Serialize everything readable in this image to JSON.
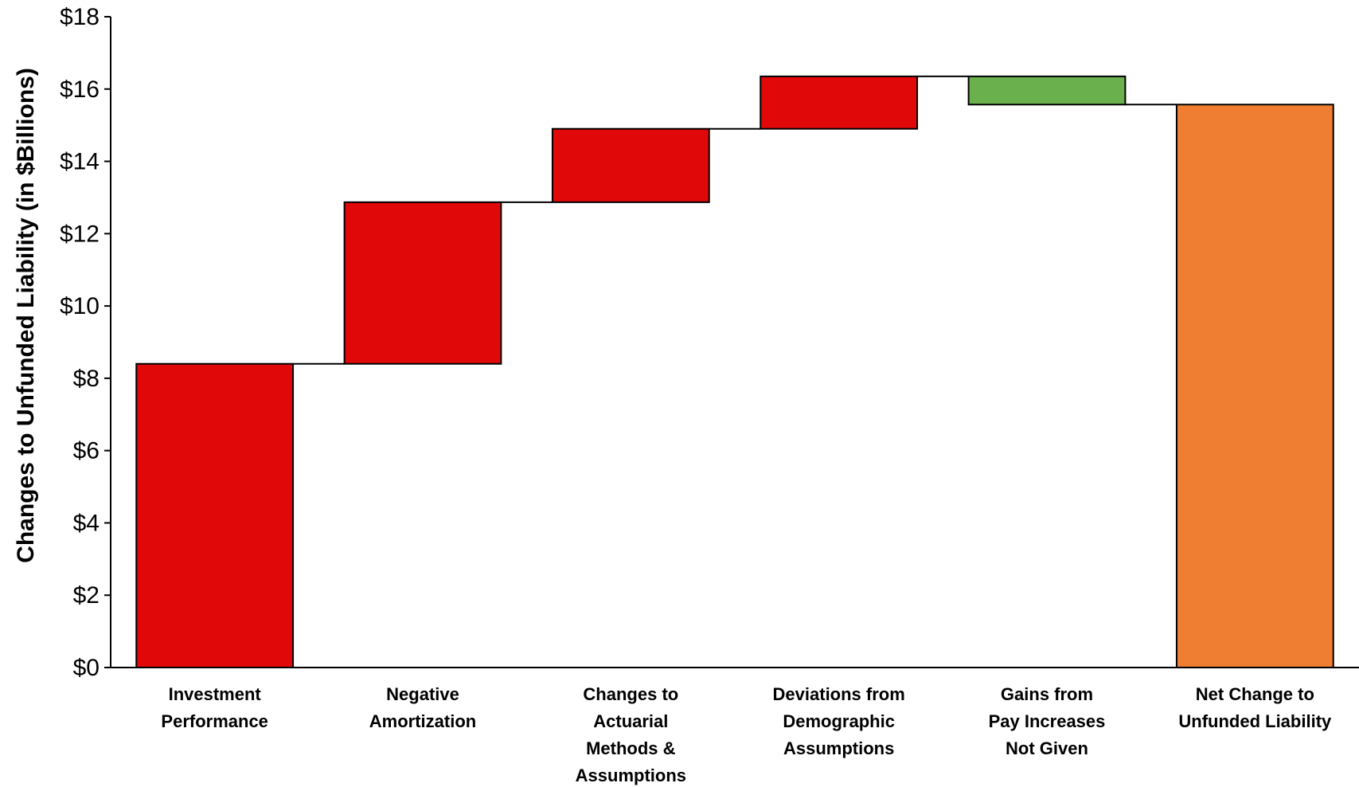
{
  "chart_data": {
    "type": "bar",
    "subtype": "waterfall",
    "ylabel": "Changes to Unfunded Liability (in $Billions)",
    "xlabel": "",
    "ylim": [
      0,
      18
    ],
    "yticks": [
      0,
      2,
      4,
      6,
      8,
      10,
      12,
      14,
      16,
      18
    ],
    "ytick_labels": [
      "$0",
      "$2",
      "$4",
      "$6",
      "$8",
      "$10",
      "$12",
      "$14",
      "$16",
      "$18"
    ],
    "grid": false,
    "legend": "none",
    "categories": [
      [
        "Investment",
        "Performance"
      ],
      [
        "Negative",
        "Amortization"
      ],
      [
        "Changes to",
        "Actuarial",
        "Methods &",
        "Assumptions"
      ],
      [
        "Deviations from",
        "Demographic",
        "Assumptions"
      ],
      [
        "Gains from",
        "Pay Increases",
        "Not Given"
      ],
      [
        "Net Change to",
        "Unfunded Liability"
      ]
    ],
    "bars": [
      {
        "start": 0,
        "end": 8.4,
        "color": "#e00808",
        "kind": "increase"
      },
      {
        "start": 8.4,
        "end": 12.87,
        "color": "#e00808",
        "kind": "increase"
      },
      {
        "start": 12.87,
        "end": 14.9,
        "color": "#e00808",
        "kind": "increase"
      },
      {
        "start": 14.9,
        "end": 16.35,
        "color": "#e00808",
        "kind": "increase"
      },
      {
        "start": 16.35,
        "end": 15.57,
        "color": "#6ab04c",
        "kind": "decrease"
      },
      {
        "start": 0,
        "end": 15.57,
        "color": "#ef7e32",
        "kind": "total"
      }
    ]
  }
}
